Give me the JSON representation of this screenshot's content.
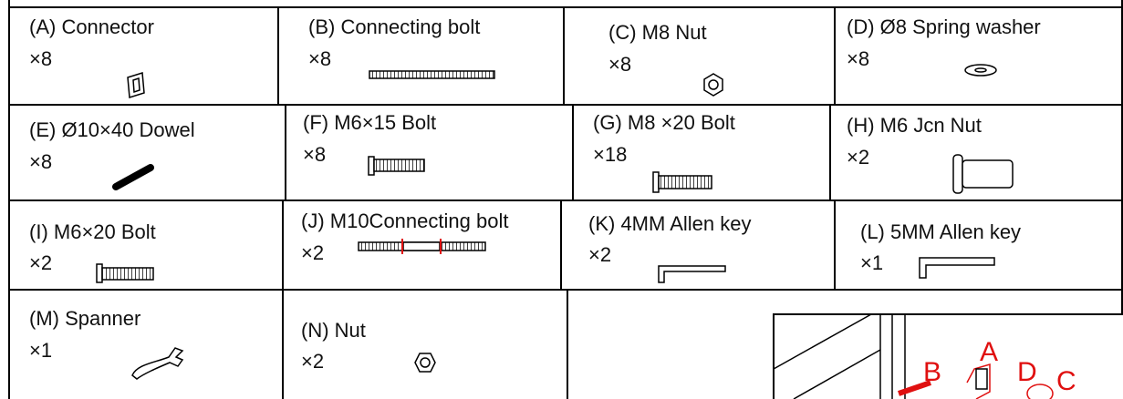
{
  "parts": [
    {
      "label": "(A) Connector",
      "qty": "×8"
    },
    {
      "label": "(B) Connecting bolt",
      "qty": "×8"
    },
    {
      "label": "(C) M8 Nut",
      "qty": "×8"
    },
    {
      "label": "(D) Ø8 Spring washer",
      "qty": "×8"
    },
    {
      "label": "(E) Ø10×40 Dowel",
      "qty": "×8"
    },
    {
      "label": "(F) M6×15 Bolt",
      "qty": "×8"
    },
    {
      "label": "(G) M8 ×20 Bolt",
      "qty": "×18"
    },
    {
      "label": "(H) M6 Jcn Nut",
      "qty": "×2"
    },
    {
      "label": "(I) M6×20 Bolt",
      "qty": "×2"
    },
    {
      "label": "(J) M10Connecting bolt",
      "qty": "×2"
    },
    {
      "label": "(K) 4MM Allen key",
      "qty": "×2"
    },
    {
      "label": "(L) 5MM Allen key",
      "qty": "×1"
    },
    {
      "label": "(M) Spanner",
      "qty": "×1"
    },
    {
      "label": "(N) Nut",
      "qty": "×2"
    }
  ],
  "diagram": {
    "labels": [
      "B",
      "A",
      "D",
      "C"
    ]
  }
}
